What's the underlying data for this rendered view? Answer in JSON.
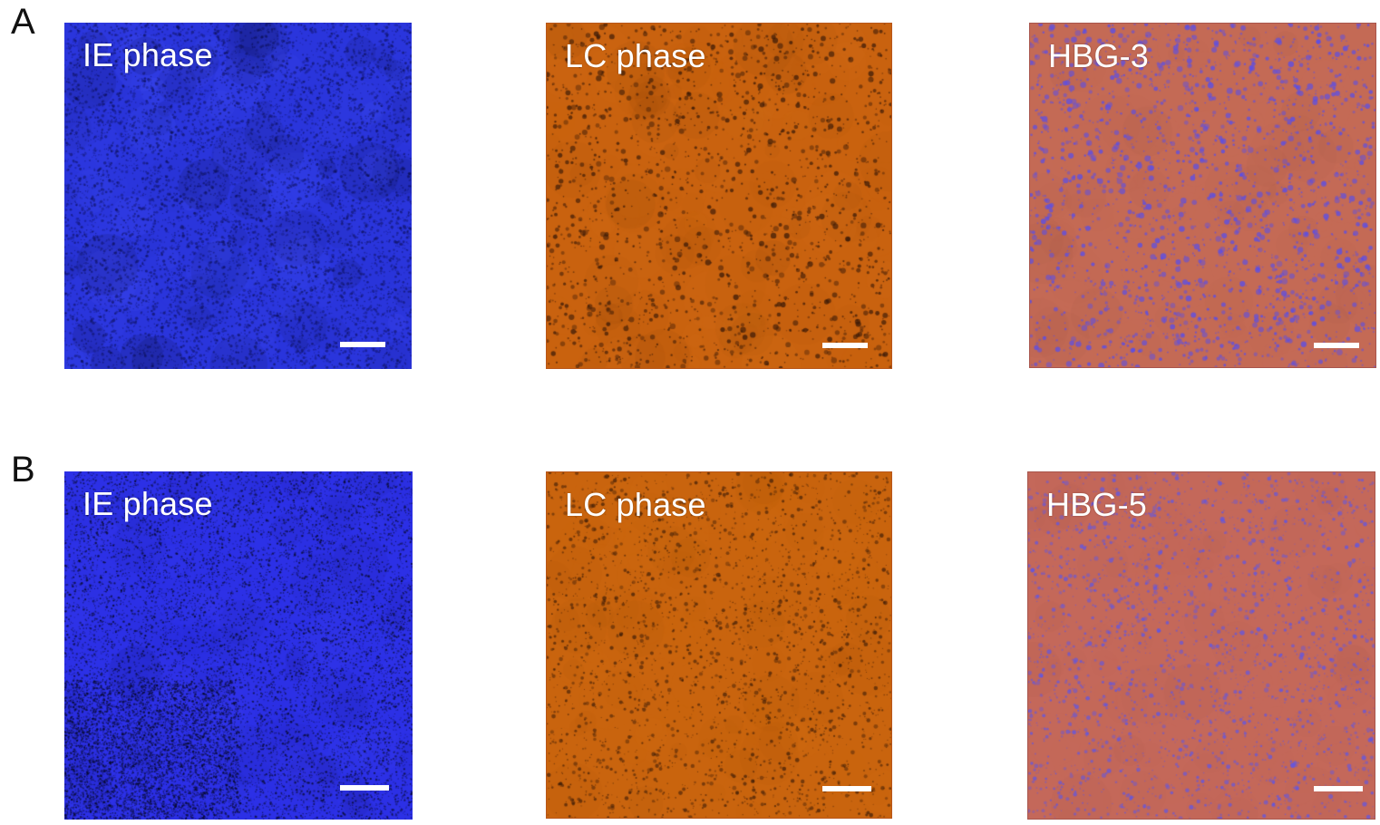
{
  "rows": [
    {
      "label": "A",
      "panels": [
        {
          "label": "IE phase",
          "base_color": "#2a35dc",
          "dot_color": "#0a0c4a",
          "pattern": "ie_coarse",
          "scale_bar": true
        },
        {
          "label": "LC phase",
          "base_color": "#c9620f",
          "dot_color": "#3a1a08",
          "pattern": "lc_coarse",
          "scale_bar": true
        },
        {
          "label": "HBG-3",
          "base_color": "#c46a55",
          "dot_color": "#5a4ee8",
          "pattern": "hbg_coarse",
          "scale_bar": true
        }
      ]
    },
    {
      "label": "B",
      "panels": [
        {
          "label": "IE phase",
          "base_color": "#2c30e6",
          "dot_color": "#060820",
          "pattern": "ie_fine",
          "scale_bar": true
        },
        {
          "label": "LC phase",
          "base_color": "#c9640e",
          "dot_color": "#3c1c08",
          "pattern": "lc_fine",
          "scale_bar": true
        },
        {
          "label": "HBG-5",
          "base_color": "#c4685a",
          "dot_color": "#5c55ea",
          "pattern": "hbg_fine",
          "scale_bar": true
        }
      ]
    }
  ]
}
